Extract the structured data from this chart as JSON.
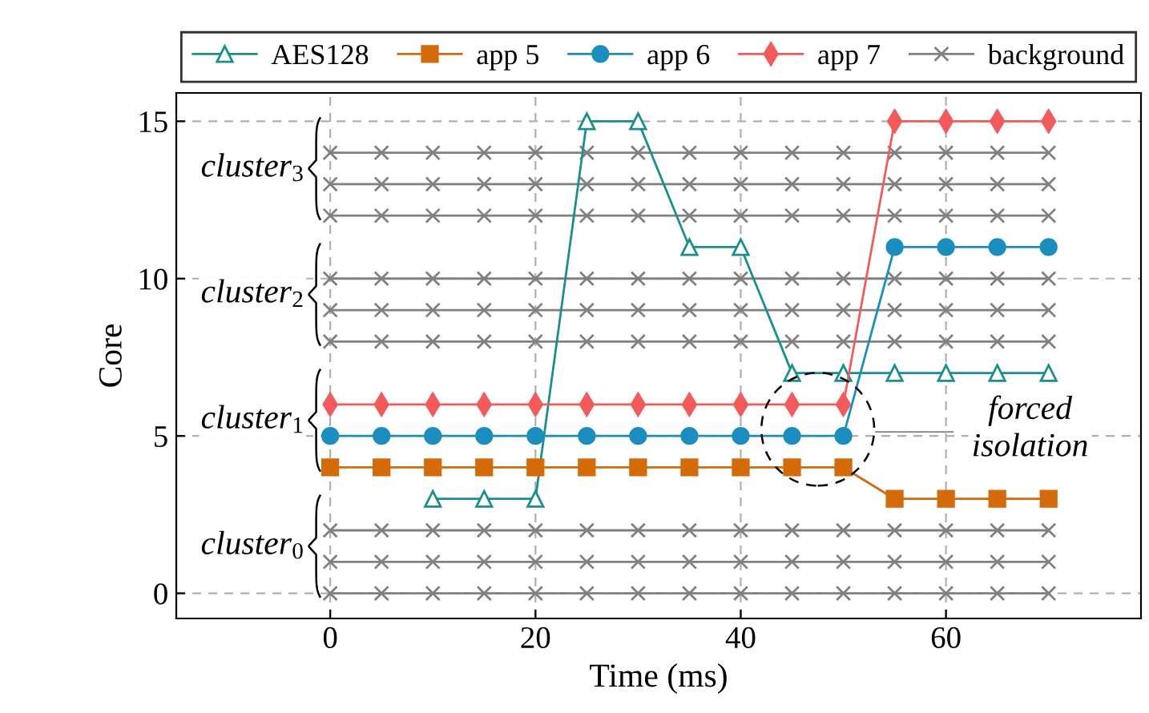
{
  "chart_data": {
    "type": "line",
    "xlabel": "Time (ms)",
    "ylabel": "Core",
    "xlim": [
      -15,
      79
    ],
    "ylim": [
      -0.8,
      15.9
    ],
    "xticks": [
      0,
      20,
      40,
      60
    ],
    "yticks": [
      0,
      5,
      10,
      15
    ],
    "grid": true,
    "legend": "top",
    "line_style": "solid",
    "series": [
      {
        "name": "AES128",
        "color": "#1a8f8f",
        "marker": "triangle",
        "x": [
          10,
          15,
          20,
          25,
          30,
          35,
          40,
          45,
          50,
          55,
          60,
          65,
          70
        ],
        "values": [
          3,
          3,
          3,
          15,
          15,
          11,
          11,
          7,
          7,
          7,
          7,
          7,
          7
        ]
      },
      {
        "name": "app 5",
        "color": "#d46b08",
        "marker": "square",
        "x": [
          0,
          5,
          10,
          15,
          20,
          25,
          30,
          35,
          40,
          45,
          50,
          55,
          60,
          65,
          70
        ],
        "values": [
          4,
          4,
          4,
          4,
          4,
          4,
          4,
          4,
          4,
          4,
          4,
          3,
          3,
          3,
          3
        ]
      },
      {
        "name": "app 6",
        "color": "#1a8fbf",
        "marker": "circle",
        "x": [
          0,
          5,
          10,
          15,
          20,
          25,
          30,
          35,
          40,
          45,
          50,
          55,
          60,
          65,
          70
        ],
        "values": [
          5,
          5,
          5,
          5,
          5,
          5,
          5,
          5,
          5,
          5,
          5,
          11,
          11,
          11,
          11
        ]
      },
      {
        "name": "app 7",
        "color": "#f55a5a",
        "marker": "diamond",
        "x": [
          0,
          5,
          10,
          15,
          20,
          25,
          30,
          35,
          40,
          45,
          50,
          55,
          60,
          65,
          70
        ],
        "values": [
          6,
          6,
          6,
          6,
          6,
          6,
          6,
          6,
          6,
          6,
          6,
          15,
          15,
          15,
          15
        ]
      },
      {
        "name": "background",
        "color": "#808080",
        "marker": "cross",
        "x": [
          0,
          5,
          10,
          15,
          20,
          25,
          30,
          35,
          40,
          45,
          50,
          55,
          60,
          65,
          70
        ],
        "values": [
          0,
          0,
          0,
          0,
          0,
          0,
          0,
          0,
          0,
          0,
          0,
          0,
          0,
          0,
          0
        ]
      },
      {
        "color": "#808080",
        "marker": "cross",
        "x": [
          0,
          5,
          10,
          15,
          20,
          25,
          30,
          35,
          40,
          45,
          50,
          55,
          60,
          65,
          70
        ],
        "values": [
          1,
          1,
          1,
          1,
          1,
          1,
          1,
          1,
          1,
          1,
          1,
          1,
          1,
          1,
          1
        ]
      },
      {
        "color": "#808080",
        "marker": "cross",
        "x": [
          0,
          5,
          10,
          15,
          20,
          25,
          30,
          35,
          40,
          45,
          50,
          55,
          60,
          65,
          70
        ],
        "values": [
          2,
          2,
          2,
          2,
          2,
          2,
          2,
          2,
          2,
          2,
          2,
          2,
          2,
          2,
          2
        ]
      },
      {
        "color": "#808080",
        "marker": "cross",
        "x": [
          0,
          5,
          10,
          15,
          20,
          25,
          30,
          35,
          40,
          45,
          50,
          55,
          60,
          65,
          70
        ],
        "values": [
          8,
          8,
          8,
          8,
          8,
          8,
          8,
          8,
          8,
          8,
          8,
          8,
          8,
          8,
          8
        ]
      },
      {
        "color": "#808080",
        "marker": "cross",
        "x": [
          0,
          5,
          10,
          15,
          20,
          25,
          30,
          35,
          40,
          45,
          50,
          55,
          60,
          65,
          70
        ],
        "values": [
          9,
          9,
          9,
          9,
          9,
          9,
          9,
          9,
          9,
          9,
          9,
          9,
          9,
          9,
          9
        ]
      },
      {
        "color": "#808080",
        "marker": "cross",
        "x": [
          0,
          5,
          10,
          15,
          20,
          25,
          30,
          35,
          40,
          45,
          50,
          55,
          60,
          65,
          70
        ],
        "values": [
          10,
          10,
          10,
          10,
          10,
          10,
          10,
          10,
          10,
          10,
          10,
          10,
          10,
          10,
          10
        ]
      },
      {
        "color": "#808080",
        "marker": "cross",
        "x": [
          0,
          5,
          10,
          15,
          20,
          25,
          30,
          35,
          40,
          45,
          50,
          55,
          60,
          65,
          70
        ],
        "values": [
          12,
          12,
          12,
          12,
          12,
          12,
          12,
          12,
          12,
          12,
          12,
          12,
          12,
          12,
          12
        ]
      },
      {
        "color": "#808080",
        "marker": "cross",
        "x": [
          0,
          5,
          10,
          15,
          20,
          25,
          30,
          35,
          40,
          45,
          50,
          55,
          60,
          65,
          70
        ],
        "values": [
          13,
          13,
          13,
          13,
          13,
          13,
          13,
          13,
          13,
          13,
          13,
          13,
          13,
          13,
          13
        ]
      },
      {
        "color": "#808080",
        "marker": "cross",
        "x": [
          0,
          5,
          10,
          15,
          20,
          25,
          30,
          35,
          40,
          45,
          50,
          55,
          60,
          65,
          70
        ],
        "values": [
          14,
          14,
          14,
          14,
          14,
          14,
          14,
          14,
          14,
          14,
          14,
          14,
          14,
          14,
          14
        ]
      }
    ],
    "annotations": [
      "cluster$_{3}$",
      "cluster$_{2}$",
      "cluster$_{1}$",
      "cluster$_{0}$",
      "forced\nisolation"
    ]
  }
}
